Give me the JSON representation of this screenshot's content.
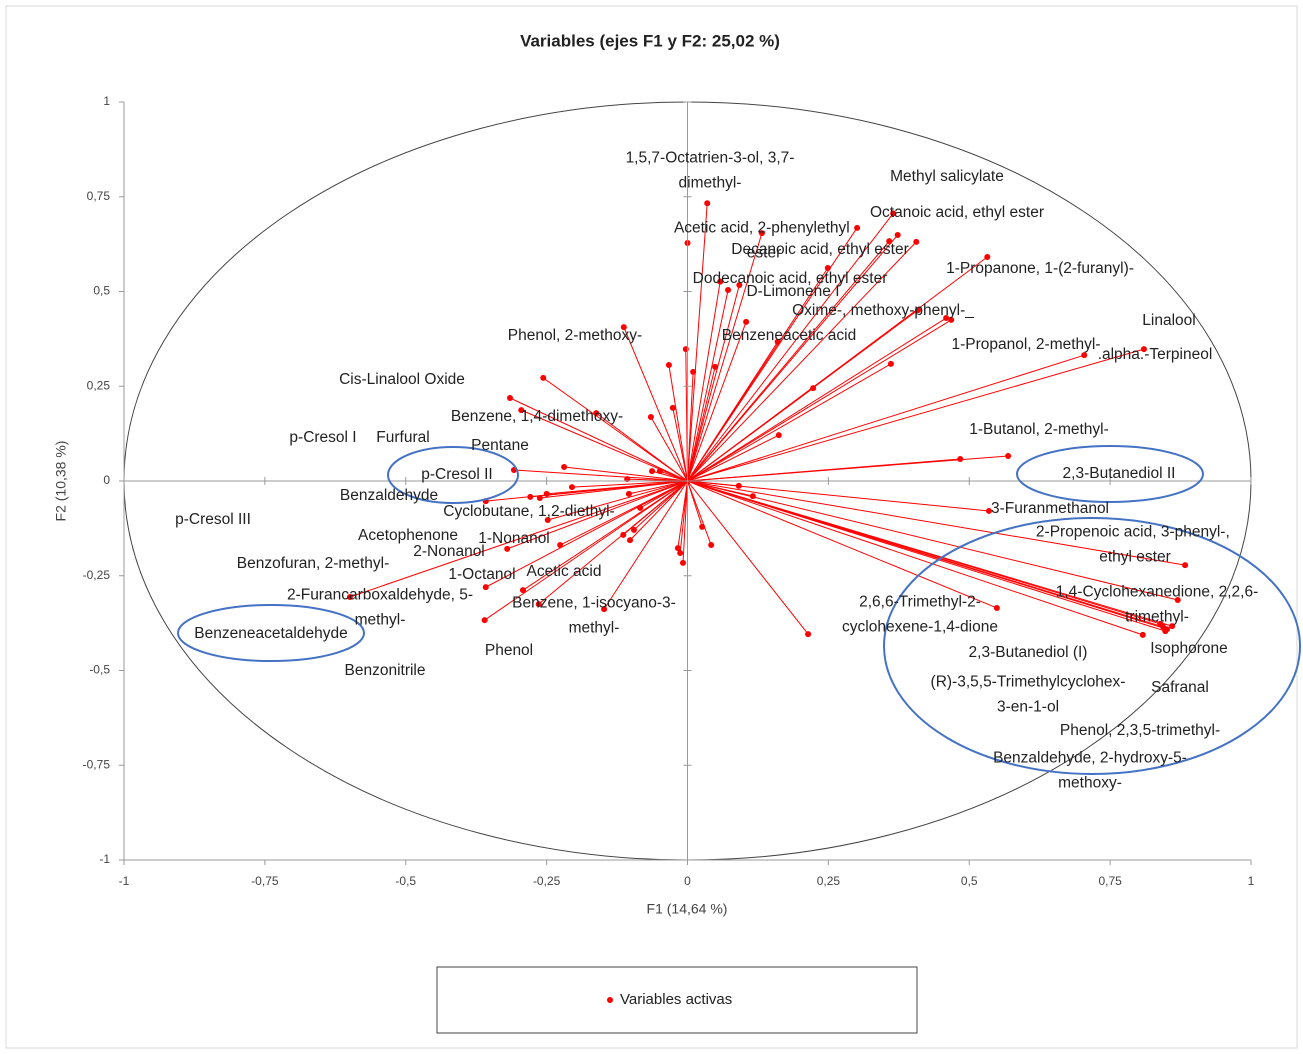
{
  "chart_data": {
    "type": "scatter",
    "title": "Variables (ejes F1 y F2: 25,02 %)",
    "x_label": "F1 (14,64 %)",
    "y_label": "F2 (10,38 %)",
    "xlim": [
      -1,
      1
    ],
    "ylim": [
      -1,
      1
    ],
    "xticks": [
      -1,
      {
        "value": -0.75,
        "label": "-0,75"
      },
      {
        "value": -0.5,
        "label": "-0,5"
      },
      {
        "value": -0.25,
        "label": "-0,25"
      },
      0,
      {
        "value": 0.25,
        "label": "0,25"
      },
      {
        "value": 0.5,
        "label": "0,5"
      },
      {
        "value": 0.75,
        "label": "0,75"
      },
      1
    ],
    "yticks": [
      -1,
      {
        "value": -0.75,
        "label": "-0,75"
      },
      {
        "value": -0.5,
        "label": "-0,5"
      },
      {
        "value": -0.25,
        "label": "-0,25"
      },
      0,
      {
        "value": 0.25,
        "label": "0,25"
      },
      {
        "value": 0.5,
        "label": "0,5"
      },
      {
        "value": 0.75,
        "label": "0,75"
      },
      1
    ],
    "legend": "bottom",
    "series": [
      {
        "name": "Variables activas",
        "color": "#ff0000",
        "x": [
          0.035,
          0.365,
          0.358,
          0.301,
          0.373,
          0.406,
          0.532,
          0,
          0.132,
          0.249,
          0.058,
          0.072,
          0.092,
          0.409,
          0.459,
          0.468,
          0.104,
          0.16,
          0.81,
          0.704,
          0.361,
          0.223,
          0.162,
          -0.113,
          -0.003,
          -0.033,
          0.01,
          0.049,
          -0.256,
          -0.315,
          -0.295,
          -0.162,
          -0.065,
          -0.026,
          0.484,
          0.569,
          -0.308,
          -0.219,
          -0.358,
          -0.279,
          -0.262,
          -0.25,
          -0.205,
          -0.107,
          -0.063,
          -0.049,
          -0.104,
          -0.084,
          -0.248,
          -0.32,
          -0.226,
          -0.358,
          -0.292,
          -0.36,
          -0.264,
          -0.148,
          -0.599,
          -0.114,
          -0.102,
          -0.095,
          0.091,
          0.116,
          0.535,
          0.883,
          0.87,
          0.844,
          0.851,
          0.86,
          0.839,
          0.848,
          0.808,
          0.549,
          0.214,
          0.026,
          0.042,
          -0.013,
          -0.008,
          -0.017
        ],
        "y": [
          0.733,
          0.706,
          0.633,
          0.668,
          0.649,
          0.631,
          0.591,
          0.628,
          0.654,
          0.562,
          0.526,
          0.504,
          0.517,
          0.451,
          0.43,
          0.425,
          0.42,
          0.367,
          0.348,
          0.332,
          0.309,
          0.245,
          0.121,
          0.406,
          0.348,
          0.306,
          0.288,
          0.301,
          0.272,
          0.219,
          0.187,
          0.179,
          0.169,
          0.193,
          0.058,
          0.066,
          0.029,
          0.037,
          -0.053,
          -0.042,
          -0.045,
          -0.034,
          -0.016,
          0.005,
          0.026,
          0.026,
          -0.034,
          -0.071,
          -0.103,
          -0.179,
          -0.169,
          -0.28,
          -0.288,
          -0.367,
          -0.325,
          -0.338,
          -0.306,
          -0.142,
          -0.156,
          -0.129,
          -0.013,
          -0.04,
          -0.079,
          -0.222,
          -0.314,
          -0.385,
          -0.391,
          -0.383,
          -0.377,
          -0.396,
          -0.406,
          -0.335,
          -0.404,
          -0.121,
          -0.169,
          -0.19,
          -0.216,
          -0.177
        ],
        "labels": [
          "1,5,7-Octatrien-3-ol, 3,7-dimethyl-",
          "Methyl salicylate",
          "Octanoic acid, ethyl ester",
          null,
          null,
          null,
          "1-Propanone, 1-(2-furanyl)-",
          "Acetic acid, 2-phenylethyl ester",
          null,
          "Decanoic acid, ethyl ester",
          "Dodecanoic acid, ethyl ester",
          "D-Limonene I",
          null,
          "Oxime-, methoxy-phenyl-_",
          null,
          "1-Propanol, 2-methyl-",
          "Benzeneacetic acid",
          null,
          "Linalool",
          ".alpha.-Terpineol",
          null,
          null,
          null,
          "Phenol, 2-methoxy-",
          null,
          null,
          null,
          null,
          "Cis-Linalool Oxide",
          "p-Cresol I",
          "Furfural",
          "Benzene, 1,4-dimethoxy-",
          null,
          null,
          "1-Butanol, 2-methyl-",
          "2,3-Butanediol II",
          "p-Cresol II",
          "Pentane",
          "Benzaldehyde",
          "p-Cresol III",
          "Acetophenone",
          "Benzofuran, 2-methyl-",
          "Benzeneacetaldehyde",
          null,
          null,
          null,
          null,
          null,
          "Cyclobutane, 1,2-diethyl-",
          "1-Nonanol",
          "2-Nonanol",
          "1-Octanol",
          "Acetic acid",
          "Phenol",
          "Benzene, 1-isocyano-3-methyl-",
          "Benzonitrile",
          "2-Furancarboxaldehyde, 5-methyl-",
          null,
          null,
          null,
          null,
          null,
          "3-Furanmethanol",
          "2-Propenoic acid, 3-phenyl-, ethyl ester",
          "1,4-Cyclohexanedione, 2,2,6-trimethyl-",
          "(R)-3,5,5-Trimethylcyclohex-3-en-1-ol",
          "Isophorone",
          "Safranal",
          "Phenol, 2,3,5-trimethyl-",
          "Benzaldehyde, 2-hydroxy-5-methoxy-",
          "2,3-Butanediol (I)",
          "2,6,6-Trimethyl-2-cyclohexene-1,4-dione",
          null,
          null,
          null,
          null,
          null,
          null
        ]
      }
    ]
  }
}
